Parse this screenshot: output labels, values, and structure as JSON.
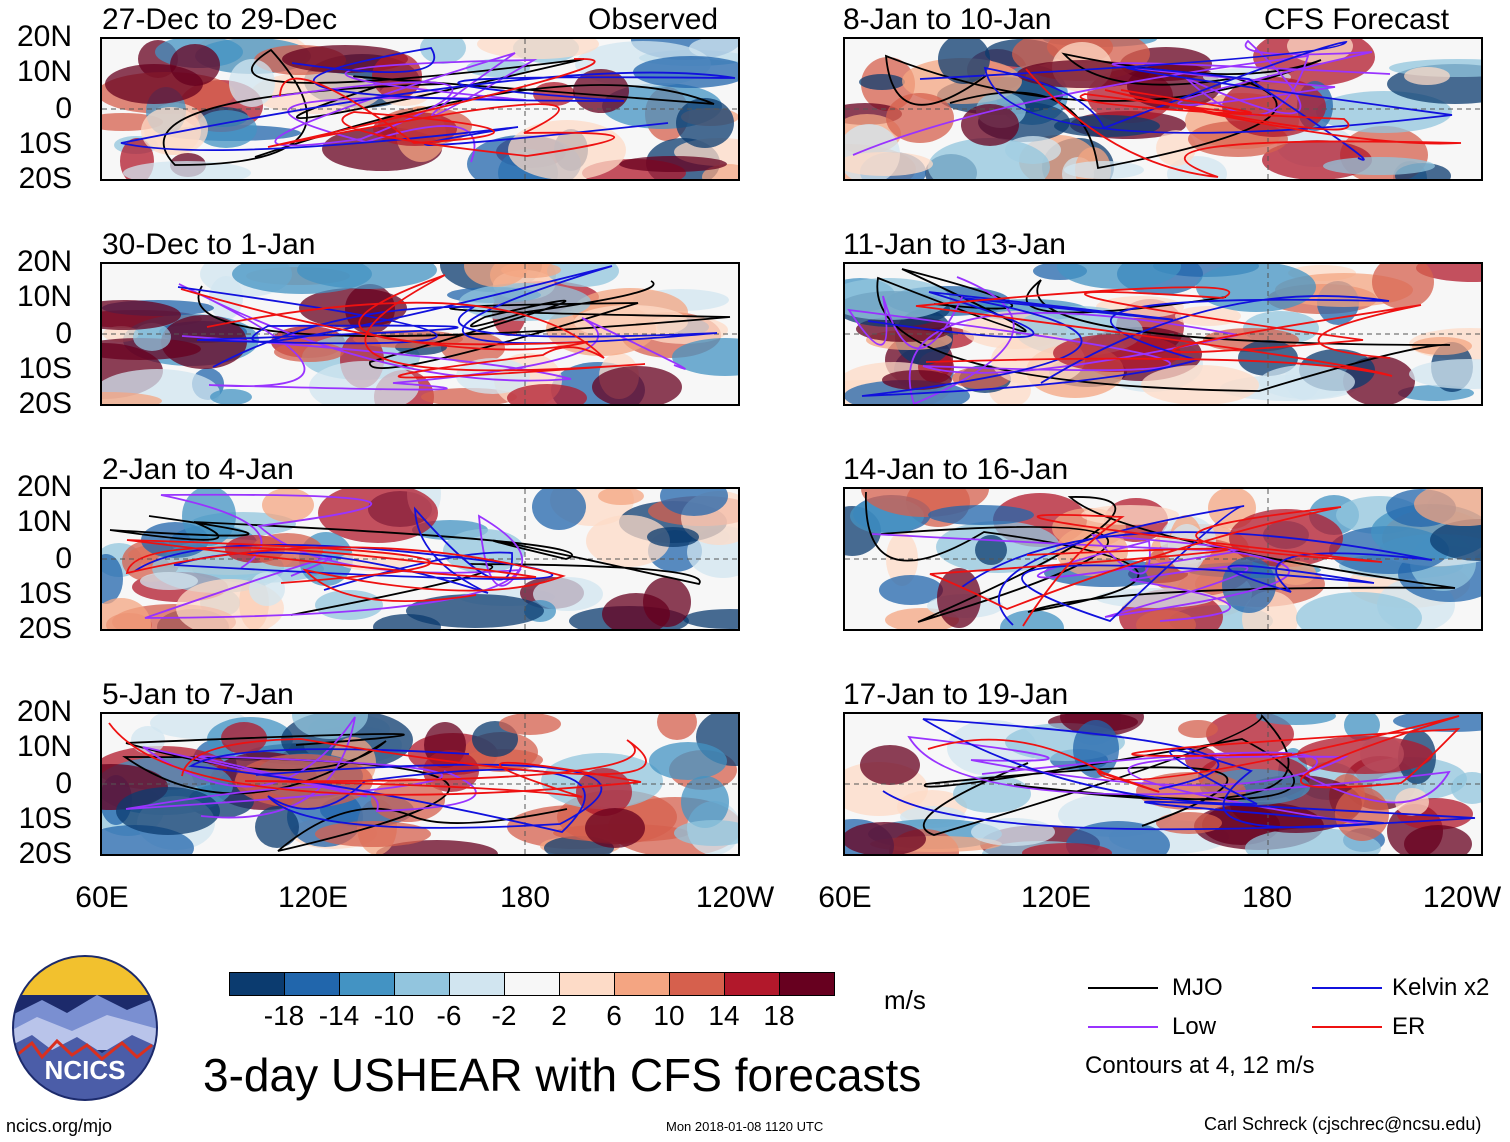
{
  "header": {
    "left_tag": "Observed",
    "right_tag": "CFS Forecast"
  },
  "panels_left": [
    {
      "title": "27-Dec to 29-Dec"
    },
    {
      "title": "30-Dec to 1-Jan"
    },
    {
      "title": "2-Jan to 4-Jan"
    },
    {
      "title": "5-Jan to 7-Jan"
    }
  ],
  "panels_right": [
    {
      "title": "8-Jan to 10-Jan"
    },
    {
      "title": "11-Jan to 13-Jan"
    },
    {
      "title": "14-Jan to 16-Jan"
    },
    {
      "title": "17-Jan to 19-Jan"
    }
  ],
  "y_ticks": [
    "20N",
    "10N",
    "0",
    "10S",
    "20S"
  ],
  "x_ticks": [
    "60E",
    "120E",
    "180",
    "120W"
  ],
  "colorbar": {
    "labels": [
      "-18",
      "-14",
      "-10",
      "-6",
      "-2",
      "2",
      "6",
      "10",
      "14",
      "18"
    ],
    "colors": [
      "#0b3b6f",
      "#2166ac",
      "#4393c3",
      "#92c5de",
      "#d1e5f0",
      "#f7f7f7",
      "#fddbc7",
      "#f4a582",
      "#d6604d",
      "#b2182b",
      "#67001f"
    ],
    "units": "m/s"
  },
  "legend": {
    "items": [
      {
        "label": "MJO",
        "color": "#000000"
      },
      {
        "label": "Low",
        "color": "#9933ff"
      },
      {
        "label": "Kelvin x2",
        "color": "#1111dd"
      },
      {
        "label": "ER",
        "color": "#ee1111"
      }
    ],
    "note": "Contours at 4, 12 m/s"
  },
  "main_title": "3-day USHEAR with CFS forecasts",
  "footer": {
    "logo_text": "NCICS",
    "url": "ncics.org/mjo",
    "timestamp": "Mon 2018-01-08 1120 UTC",
    "author": "Carl Schreck (cjschrec@ncsu.edu)"
  }
}
